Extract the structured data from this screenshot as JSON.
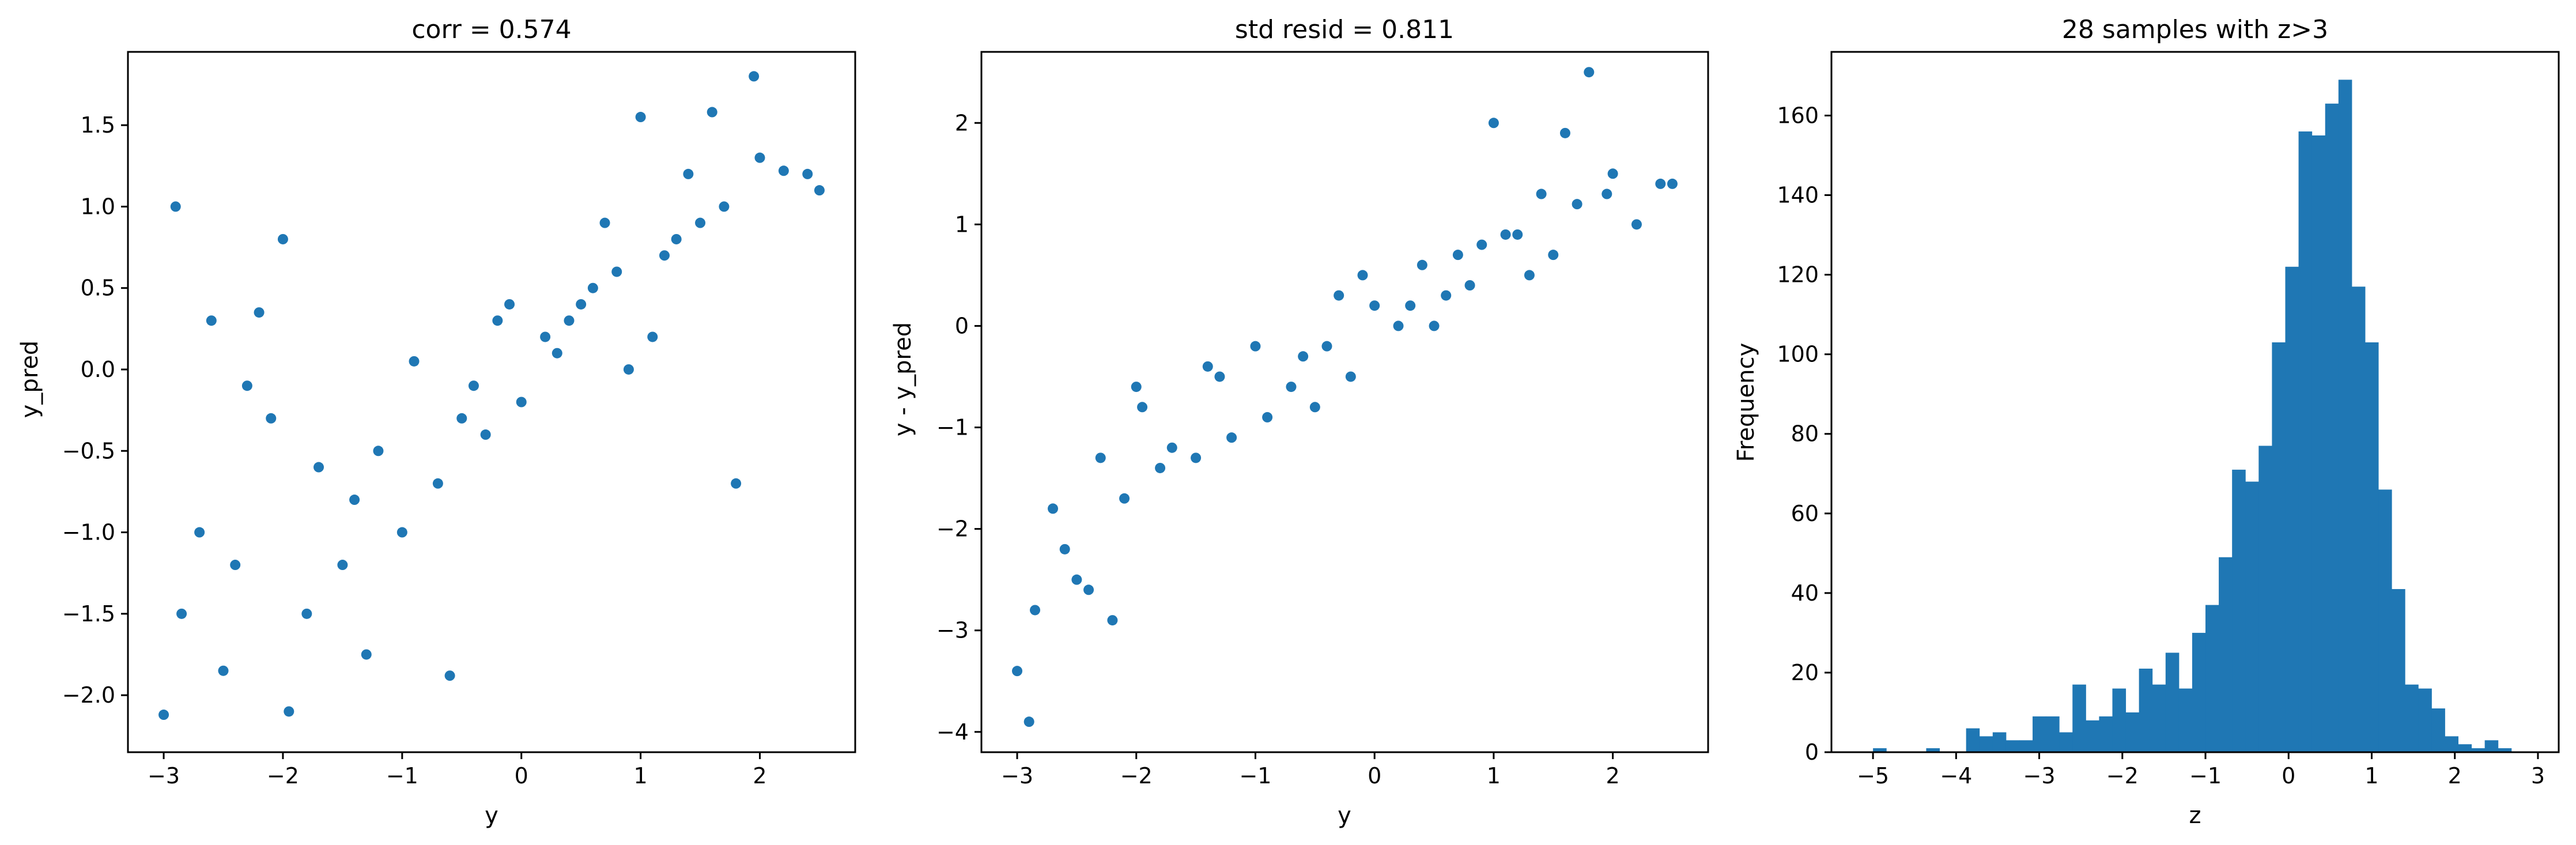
{
  "chart_data": [
    {
      "type": "scatter",
      "title": "corr = 0.574",
      "xlabel": "y",
      "ylabel": "y_pred",
      "xlim": [
        -3.3,
        2.8
      ],
      "ylim": [
        -2.35,
        1.95
      ],
      "xticks": [
        -3,
        -2,
        -1,
        0,
        1,
        2
      ],
      "xtick_labels": [
        "−3",
        "−2",
        "−1",
        "0",
        "1",
        "2"
      ],
      "yticks": [
        -2.0,
        -1.5,
        -1.0,
        -0.5,
        0.0,
        0.5,
        1.0,
        1.5
      ],
      "ytick_labels": [
        "−2.0",
        "−1.5",
        "−1.0",
        "−0.5",
        "0.0",
        "0.5",
        "1.0",
        "1.5"
      ],
      "color": "#1f77b4",
      "series": [
        {
          "x": [
            -3.0,
            -2.9,
            -2.85,
            -2.5,
            -2.3,
            -2.2,
            -1.95,
            -1.8,
            -1.5,
            -1.3,
            -0.6,
            -2.0,
            -1.0,
            1.0,
            1.4,
            1.6,
            1.95,
            2.2,
            2.4,
            2.5,
            1.8,
            -0.2,
            0.3,
            0.5,
            0.8,
            1.1,
            1.3,
            -0.5,
            -1.2,
            -2.7,
            -2.6,
            -1.7,
            -0.9,
            0.0,
            0.2,
            0.6,
            0.9,
            1.2,
            1.5,
            -0.3,
            -0.7,
            -1.4,
            -2.1,
            -2.4,
            0.4,
            0.7,
            1.7,
            2.0,
            -0.1,
            -0.4
          ],
          "y": [
            -2.12,
            1.0,
            -1.5,
            -1.85,
            -0.1,
            0.35,
            -2.1,
            -1.5,
            -1.2,
            -1.75,
            -1.88,
            0.8,
            -1.0,
            1.55,
            1.2,
            1.58,
            1.8,
            1.22,
            1.2,
            1.1,
            -0.7,
            0.3,
            0.1,
            0.4,
            0.6,
            0.2,
            0.8,
            -0.3,
            -0.5,
            -1.0,
            0.3,
            -0.6,
            0.05,
            -0.2,
            0.2,
            0.5,
            0.0,
            0.7,
            0.9,
            -0.4,
            -0.7,
            -0.8,
            -0.3,
            -1.2,
            0.3,
            0.9,
            1.0,
            1.3,
            0.4,
            -0.1
          ]
        }
      ]
    },
    {
      "type": "scatter",
      "title": "std resid = 0.811",
      "xlabel": "y",
      "ylabel": "y - y_pred",
      "xlim": [
        -3.3,
        2.8
      ],
      "ylim": [
        -4.2,
        2.7
      ],
      "xticks": [
        -3,
        -2,
        -1,
        0,
        1,
        2
      ],
      "xtick_labels": [
        "−3",
        "−2",
        "−1",
        "0",
        "1",
        "2"
      ],
      "yticks": [
        -4,
        -3,
        -2,
        -1,
        0,
        1,
        2
      ],
      "ytick_labels": [
        "−4",
        "−3",
        "−2",
        "−1",
        "0",
        "1",
        "2"
      ],
      "color": "#1f77b4",
      "series": [
        {
          "x": [
            -3.0,
            -2.9,
            -2.85,
            -2.5,
            -2.3,
            -2.2,
            -1.95,
            -1.8,
            -1.5,
            -1.3,
            -0.6,
            -2.0,
            -1.0,
            1.0,
            1.4,
            1.6,
            1.95,
            2.2,
            2.4,
            2.5,
            1.8,
            -0.2,
            0.3,
            0.5,
            0.8,
            1.1,
            1.3,
            -0.5,
            -1.2,
            -2.7,
            -2.6,
            -1.7,
            -0.9,
            0.0,
            0.2,
            0.6,
            0.9,
            1.2,
            1.5,
            -0.3,
            -0.7,
            -1.4,
            -2.1,
            -2.4,
            0.4,
            0.7,
            1.7,
            2.0,
            -0.1,
            -0.4
          ],
          "y": [
            -3.4,
            -3.9,
            -2.8,
            -2.5,
            -1.3,
            -2.9,
            -0.8,
            -1.4,
            -1.3,
            -0.5,
            -0.3,
            -0.6,
            -0.2,
            2.0,
            1.3,
            1.9,
            1.3,
            1.0,
            1.4,
            1.4,
            2.5,
            -0.5,
            0.2,
            0.0,
            0.4,
            0.9,
            0.5,
            -0.8,
            -1.1,
            -1.8,
            -2.2,
            -1.2,
            -0.9,
            0.2,
            0.0,
            0.3,
            0.8,
            0.9,
            0.7,
            0.3,
            -0.6,
            -0.4,
            -1.7,
            -2.6,
            0.6,
            0.7,
            1.2,
            1.5,
            0.5,
            -0.2
          ]
        }
      ]
    },
    {
      "type": "bar",
      "title": "28 samples with z>3",
      "xlabel": "z",
      "ylabel": "Frequency",
      "xlim": [
        -5.5,
        3.25
      ],
      "ylim": [
        0,
        176
      ],
      "xticks": [
        -5,
        -4,
        -3,
        -2,
        -1,
        0,
        1,
        2,
        3
      ],
      "xtick_labels": [
        "−5",
        "−4",
        "−3",
        "−2",
        "−1",
        "0",
        "1",
        "2",
        "3"
      ],
      "yticks": [
        0,
        20,
        40,
        60,
        80,
        100,
        120,
        140,
        160
      ],
      "ytick_labels": [
        "0",
        "20",
        "40",
        "60",
        "80",
        "100",
        "120",
        "140",
        "160"
      ],
      "color": "#1f77b4",
      "bin_start": -5.0,
      "bin_width": 0.16,
      "counts": [
        1,
        0,
        0,
        0,
        1,
        0,
        0,
        6,
        4,
        5,
        3,
        3,
        9,
        9,
        5,
        17,
        8,
        9,
        16,
        10,
        21,
        17,
        25,
        16,
        30,
        37,
        49,
        71,
        68,
        77,
        103,
        122,
        156,
        155,
        163,
        169,
        117,
        103,
        66,
        41,
        17,
        16,
        11,
        4,
        2,
        1,
        3,
        1
      ]
    }
  ]
}
